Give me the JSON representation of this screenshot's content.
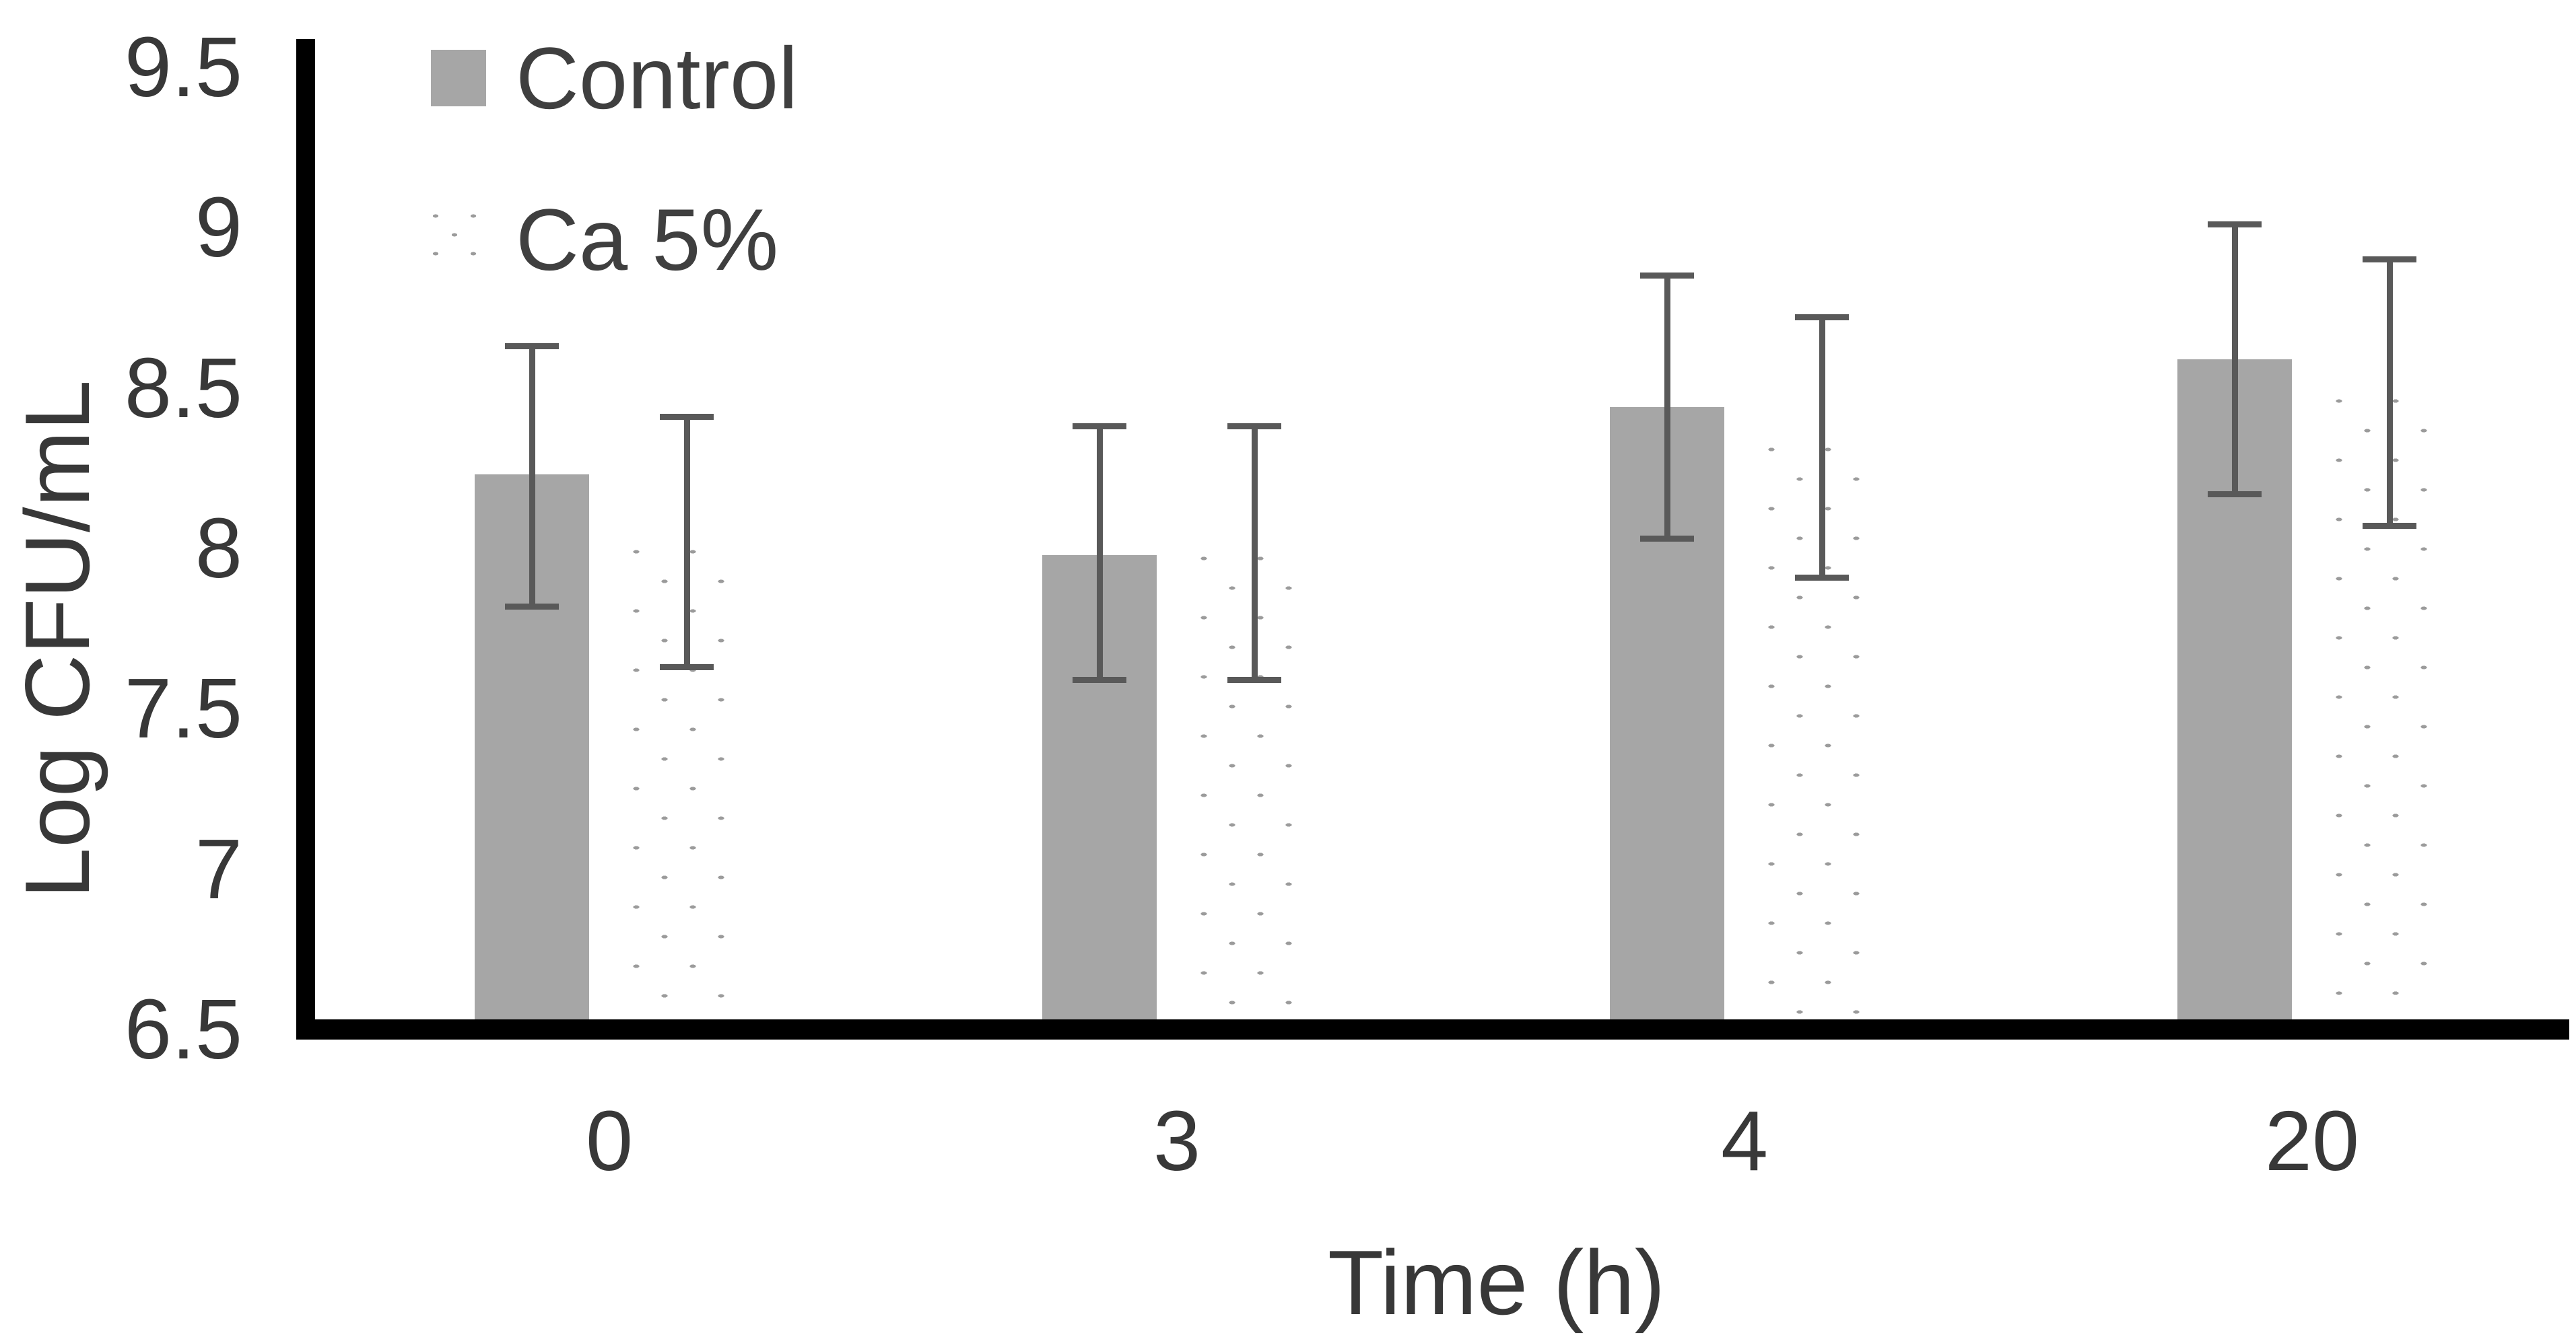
{
  "figure": {
    "background": "#ffffff",
    "bar_gray": "#a6a6a6",
    "dot_gray": "#9b9b9b",
    "error_bar_color": "#595959",
    "axis_color": "#000000",
    "text_color": "#383838"
  },
  "chart_data": {
    "type": "bar",
    "title": "",
    "xlabel": "Time (h)",
    "ylabel": "Log CFU/mL",
    "ylim": [
      6.5,
      9.5
    ],
    "ytick_labels": [
      "9.5",
      "9",
      "8.5",
      "8",
      "7.5",
      "7",
      "6.5"
    ],
    "ytick_values": [
      9.5,
      9.0,
      8.5,
      8.0,
      7.5,
      7.0,
      6.5
    ],
    "categories": [
      "0",
      "3",
      "4",
      "20"
    ],
    "grid": false,
    "legend": {
      "position": "top-left-inside",
      "entries": [
        "Control",
        "Ca 5%"
      ]
    },
    "series": [
      {
        "name": "Control",
        "style": "solid",
        "color": "#a6a6a6",
        "values": [
          8.23,
          7.98,
          8.44,
          8.59
        ],
        "error_upper": [
          8.64,
          8.39,
          8.86,
          9.02
        ],
        "error_lower": [
          7.81,
          7.58,
          8.02,
          8.16
        ]
      },
      {
        "name": "Ca 5%",
        "style": "dotted",
        "color": "#9b9b9b",
        "values": [
          8.01,
          7.99,
          8.33,
          8.48
        ],
        "error_upper": [
          8.42,
          8.39,
          8.73,
          8.91
        ],
        "error_lower": [
          7.62,
          7.58,
          7.9,
          8.06
        ]
      }
    ]
  }
}
